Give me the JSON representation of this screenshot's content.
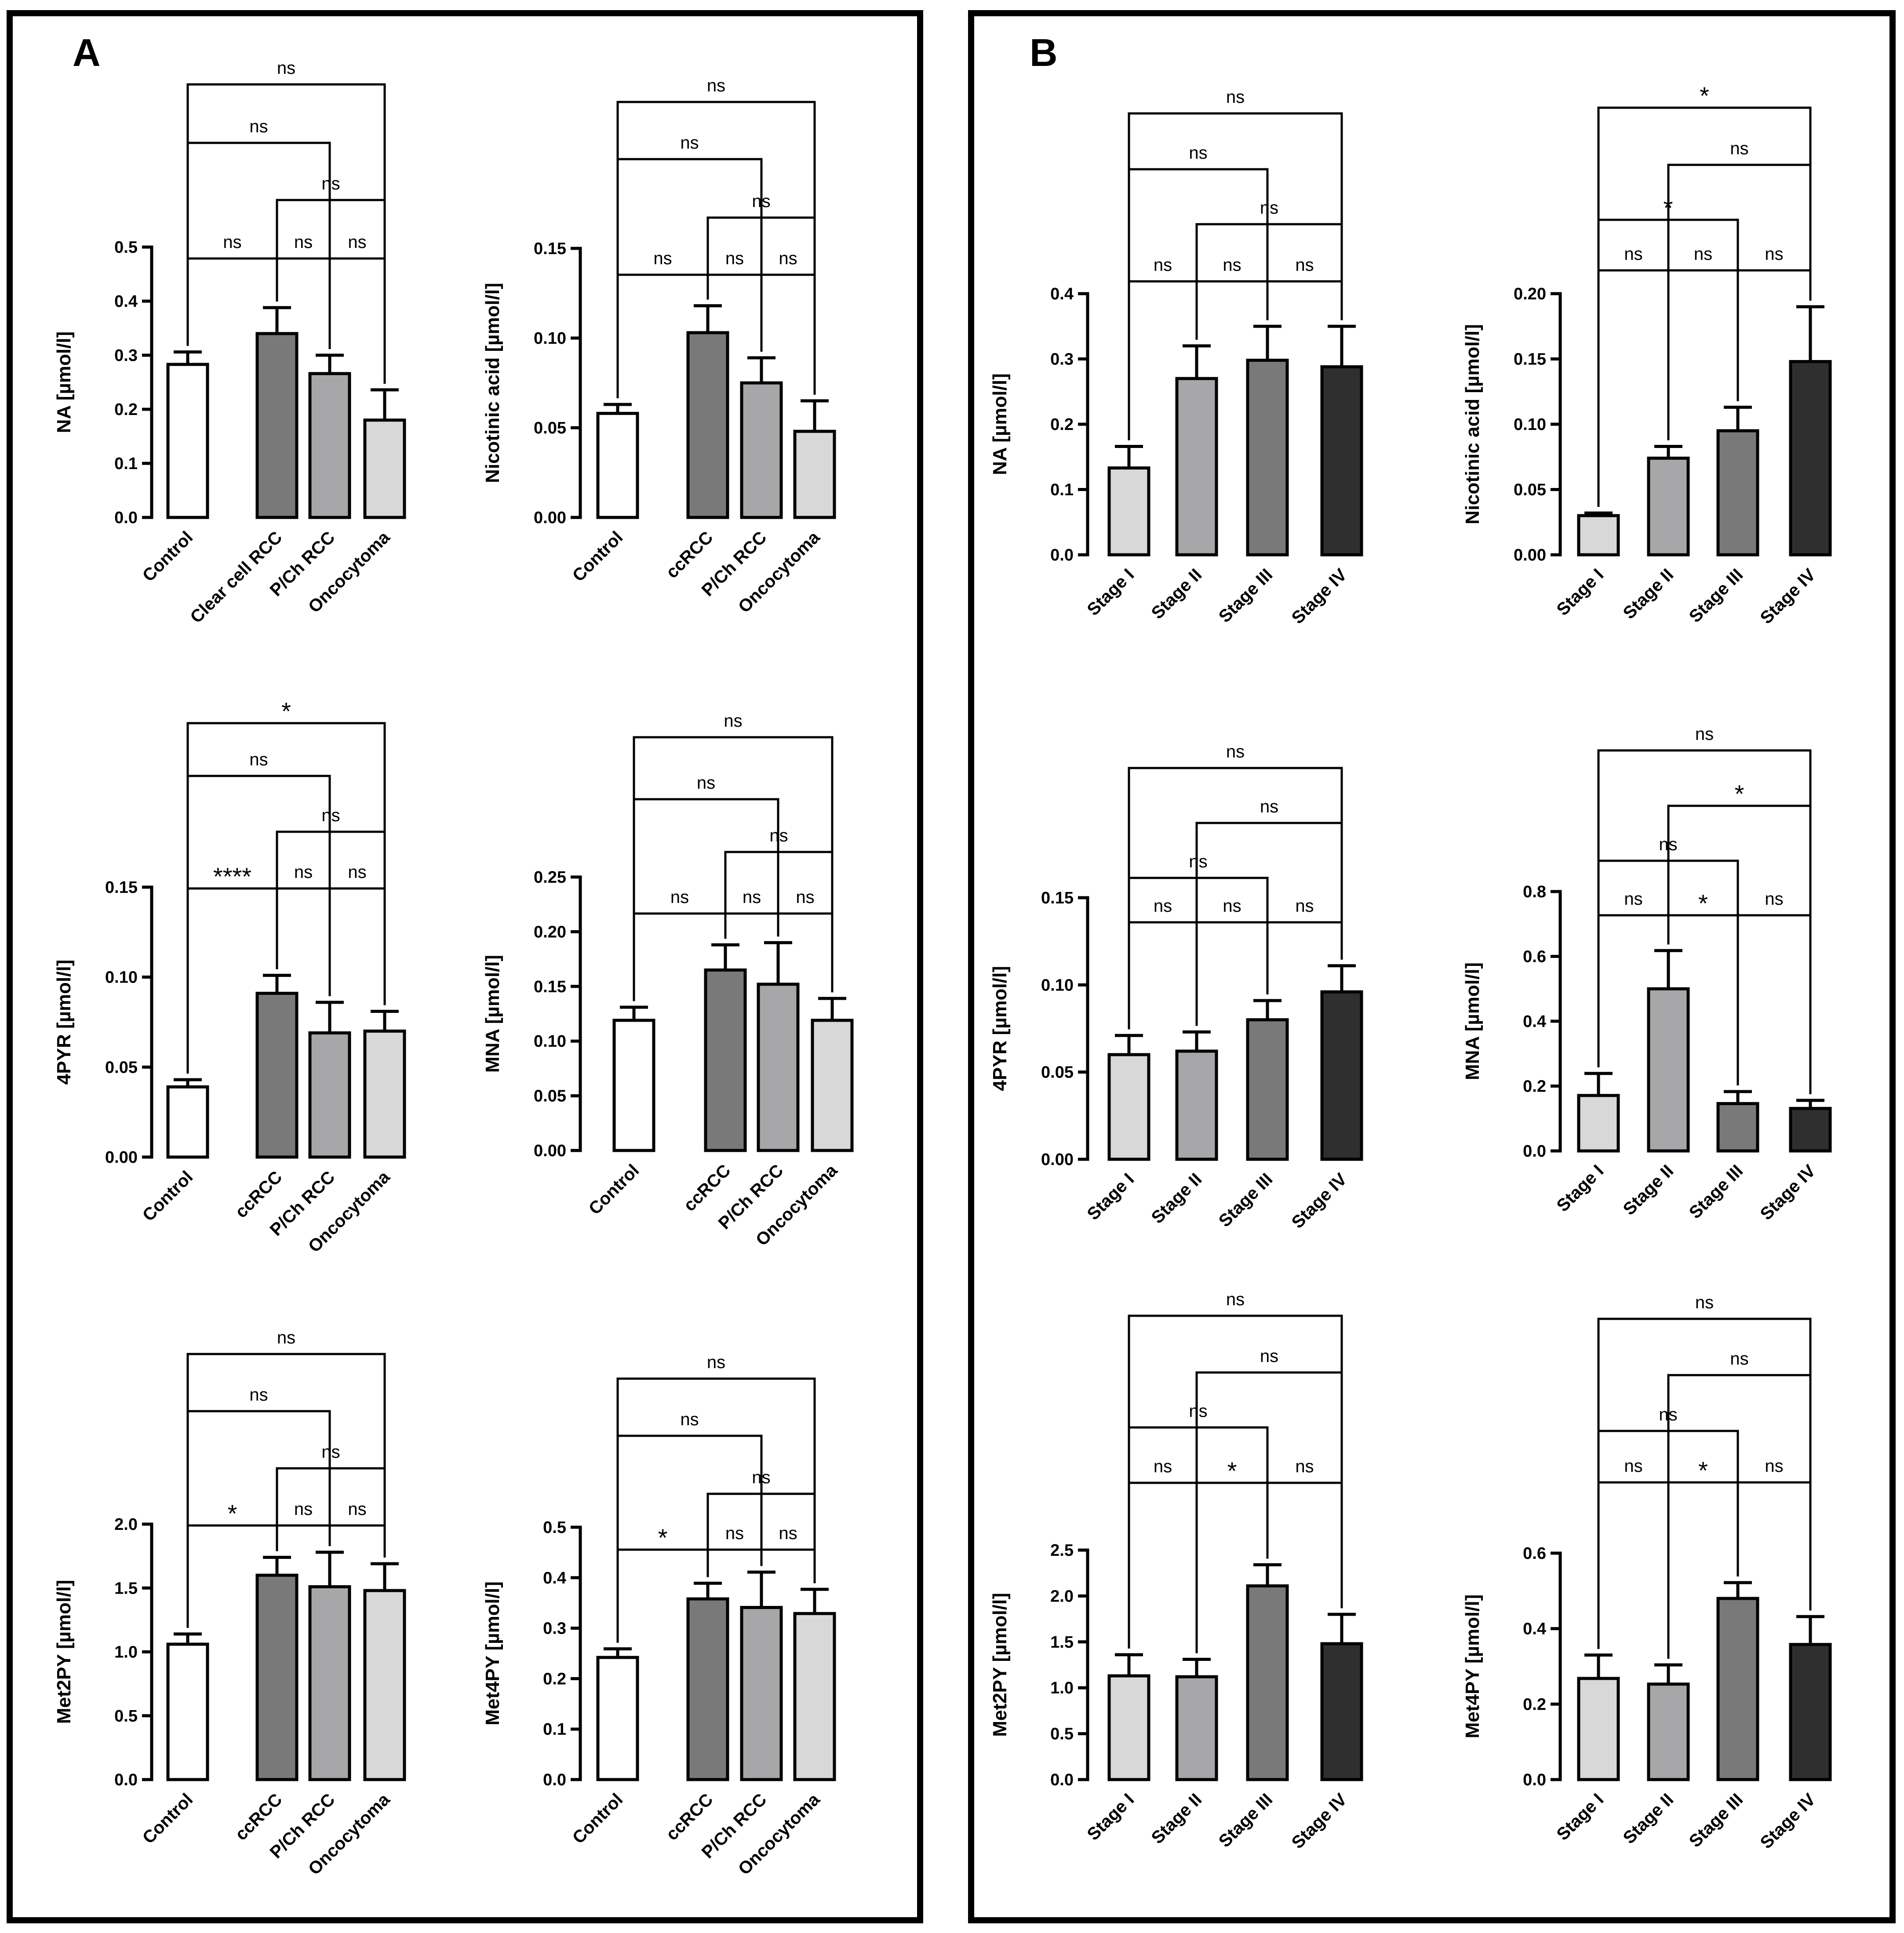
{
  "panels": [
    {
      "label": "A"
    },
    {
      "label": "B"
    }
  ],
  "chart_data": [
    {
      "type": "bar",
      "panel": "A",
      "categories": [
        "Control",
        "Clear cell RCC",
        "P/Ch RCC",
        "Oncocytoma"
      ],
      "values": [
        0.283,
        0.34,
        0.266,
        0.18
      ],
      "errors": [
        0.023,
        0.048,
        0.034,
        0.056
      ],
      "colors": [
        "#ffffff",
        "#797979",
        "#a7a7a9",
        "#d8d8d8"
      ],
      "ylabel": "NA [µmol/l]",
      "ylim": [
        0,
        0.5
      ],
      "yticks": [
        "0.0",
        "0.1",
        "0.2",
        "0.3",
        "0.4",
        "0.5"
      ],
      "comparisons": [
        {
          "a": 0,
          "b": 1,
          "label": "ns"
        },
        {
          "a": 1,
          "b": 2,
          "label": "ns"
        },
        {
          "a": 2,
          "b": 3,
          "label": "ns"
        },
        {
          "a": 1,
          "b": 3,
          "label": "ns"
        },
        {
          "a": 0,
          "b": 2,
          "label": "ns"
        },
        {
          "a": 0,
          "b": 3,
          "label": "ns"
        }
      ]
    },
    {
      "type": "bar",
      "panel": "A",
      "categories": [
        "Control",
        "ccRCC",
        "P/Ch RCC",
        "Oncocytoma"
      ],
      "values": [
        0.058,
        0.103,
        0.075,
        0.048
      ],
      "errors": [
        0.005,
        0.015,
        0.014,
        0.017
      ],
      "colors": [
        "#ffffff",
        "#797979",
        "#a7a7a9",
        "#d8d8d8"
      ],
      "ylabel": "Nicotinic acid [µmol/l]",
      "ylim": [
        0,
        0.15
      ],
      "yticks": [
        "0.00",
        "0.05",
        "0.10",
        "0.15"
      ],
      "comparisons": [
        {
          "a": 0,
          "b": 1,
          "label": "ns"
        },
        {
          "a": 1,
          "b": 2,
          "label": "ns"
        },
        {
          "a": 2,
          "b": 3,
          "label": "ns"
        },
        {
          "a": 1,
          "b": 3,
          "label": "ns"
        },
        {
          "a": 0,
          "b": 2,
          "label": "ns"
        },
        {
          "a": 0,
          "b": 3,
          "label": "ns"
        }
      ]
    },
    {
      "type": "bar",
      "panel": "A",
      "categories": [
        "Control",
        "ccRCC",
        "P/Ch RCC",
        "Oncocytoma"
      ],
      "values": [
        0.039,
        0.091,
        0.069,
        0.07
      ],
      "errors": [
        0.004,
        0.01,
        0.017,
        0.011
      ],
      "colors": [
        "#ffffff",
        "#797979",
        "#a7a7a9",
        "#d8d8d8"
      ],
      "ylabel": "4PYR [µmol/l]",
      "ylim": [
        0,
        0.15
      ],
      "yticks": [
        "0.00",
        "0.05",
        "0.10",
        "0.15"
      ],
      "comparisons": [
        {
          "a": 0,
          "b": 1,
          "label": "****"
        },
        {
          "a": 1,
          "b": 2,
          "label": "ns"
        },
        {
          "a": 2,
          "b": 3,
          "label": "ns"
        },
        {
          "a": 1,
          "b": 3,
          "label": "ns"
        },
        {
          "a": 0,
          "b": 2,
          "label": "ns"
        },
        {
          "a": 0,
          "b": 3,
          "label": "*"
        }
      ]
    },
    {
      "type": "bar",
      "panel": "A",
      "categories": [
        "Control",
        "ccRCC",
        "P/Ch RCC",
        "Oncocytoma"
      ],
      "values": [
        0.119,
        0.165,
        0.152,
        0.119
      ],
      "errors": [
        0.012,
        0.023,
        0.038,
        0.02
      ],
      "colors": [
        "#ffffff",
        "#797979",
        "#a7a7a9",
        "#d8d8d8"
      ],
      "ylabel": "MNA [µmol/l]",
      "ylim": [
        0,
        0.25
      ],
      "yticks": [
        "0.00",
        "0.05",
        "0.10",
        "0.15",
        "0.20",
        "0.25"
      ],
      "comparisons": [
        {
          "a": 0,
          "b": 1,
          "label": "ns"
        },
        {
          "a": 1,
          "b": 2,
          "label": "ns"
        },
        {
          "a": 2,
          "b": 3,
          "label": "ns"
        },
        {
          "a": 1,
          "b": 3,
          "label": "ns"
        },
        {
          "a": 0,
          "b": 2,
          "label": "ns"
        },
        {
          "a": 0,
          "b": 3,
          "label": "ns"
        }
      ]
    },
    {
      "type": "bar",
      "panel": "A",
      "categories": [
        "Control",
        "ccRCC",
        "P/Ch RCC",
        "Oncocytoma"
      ],
      "values": [
        1.06,
        1.6,
        1.51,
        1.48
      ],
      "errors": [
        0.08,
        0.14,
        0.27,
        0.21
      ],
      "colors": [
        "#ffffff",
        "#797979",
        "#a7a7a9",
        "#d8d8d8"
      ],
      "ylabel": "Met2PY [µmol/l]",
      "ylim": [
        0,
        2.0
      ],
      "yticks": [
        "0.0",
        "0.5",
        "1.0",
        "1.5",
        "2.0"
      ],
      "comparisons": [
        {
          "a": 0,
          "b": 1,
          "label": "*"
        },
        {
          "a": 1,
          "b": 2,
          "label": "ns"
        },
        {
          "a": 2,
          "b": 3,
          "label": "ns"
        },
        {
          "a": 1,
          "b": 3,
          "label": "ns"
        },
        {
          "a": 0,
          "b": 2,
          "label": "ns"
        },
        {
          "a": 0,
          "b": 3,
          "label": "ns"
        }
      ]
    },
    {
      "type": "bar",
      "panel": "A",
      "categories": [
        "Control",
        "ccRCC",
        "P/Ch RCC",
        "Oncocytoma"
      ],
      "values": [
        0.242,
        0.358,
        0.341,
        0.329
      ],
      "errors": [
        0.017,
        0.031,
        0.07,
        0.048
      ],
      "colors": [
        "#ffffff",
        "#797979",
        "#a7a7a9",
        "#d8d8d8"
      ],
      "ylabel": "Met4PY [µmol/l]",
      "ylim": [
        0,
        0.5
      ],
      "yticks": [
        "0.0",
        "0.1",
        "0.2",
        "0.3",
        "0.4",
        "0.5"
      ],
      "comparisons": [
        {
          "a": 0,
          "b": 1,
          "label": "*"
        },
        {
          "a": 1,
          "b": 2,
          "label": "ns"
        },
        {
          "a": 2,
          "b": 3,
          "label": "ns"
        },
        {
          "a": 1,
          "b": 3,
          "label": "ns"
        },
        {
          "a": 0,
          "b": 2,
          "label": "ns"
        },
        {
          "a": 0,
          "b": 3,
          "label": "ns"
        }
      ]
    },
    {
      "type": "bar",
      "panel": "B",
      "categories": [
        "Stage I",
        "Stage II",
        "Stage III",
        "Stage IV"
      ],
      "values": [
        0.133,
        0.27,
        0.298,
        0.288
      ],
      "errors": [
        0.033,
        0.05,
        0.052,
        0.062
      ],
      "colors": [
        "#d8d8d8",
        "#a7a7a9",
        "#797979",
        "#2f2f2f"
      ],
      "ylabel": "NA [µmol/l]",
      "ylim": [
        0,
        0.4
      ],
      "yticks": [
        "0.0",
        "0.1",
        "0.2",
        "0.3",
        "0.4"
      ],
      "comparisons": [
        {
          "a": 0,
          "b": 1,
          "label": "ns"
        },
        {
          "a": 1,
          "b": 2,
          "label": "ns"
        },
        {
          "a": 2,
          "b": 3,
          "label": "ns"
        },
        {
          "a": 1,
          "b": 3,
          "label": "ns"
        },
        {
          "a": 0,
          "b": 2,
          "label": "ns"
        },
        {
          "a": 0,
          "b": 3,
          "label": "ns"
        }
      ]
    },
    {
      "type": "bar",
      "panel": "B",
      "categories": [
        "Stage I",
        "Stage II",
        "Stage III",
        "Stage IV"
      ],
      "values": [
        0.03,
        0.074,
        0.095,
        0.148
      ],
      "errors": [
        0.002,
        0.009,
        0.018,
        0.042
      ],
      "colors": [
        "#d8d8d8",
        "#a7a7a9",
        "#797979",
        "#2f2f2f"
      ],
      "ylabel": "Nicotinic acid [µmol/l]",
      "ylim": [
        0,
        0.2
      ],
      "yticks": [
        "0.00",
        "0.05",
        "0.10",
        "0.15",
        "0.20"
      ],
      "comparisons": [
        {
          "a": 0,
          "b": 1,
          "label": "ns"
        },
        {
          "a": 1,
          "b": 2,
          "label": "ns"
        },
        {
          "a": 2,
          "b": 3,
          "label": "ns"
        },
        {
          "a": 0,
          "b": 2,
          "label": "*"
        },
        {
          "a": 1,
          "b": 3,
          "label": "ns"
        },
        {
          "a": 0,
          "b": 3,
          "label": "*"
        }
      ]
    },
    {
      "type": "bar",
      "panel": "B",
      "categories": [
        "Stage I",
        "Stage II",
        "Stage III",
        "Stage IV"
      ],
      "values": [
        0.06,
        0.062,
        0.08,
        0.096
      ],
      "errors": [
        0.011,
        0.011,
        0.011,
        0.015
      ],
      "colors": [
        "#d8d8d8",
        "#a7a7a9",
        "#797979",
        "#2f2f2f"
      ],
      "ylabel": "4PYR [µmol/l]",
      "ylim": [
        0,
        0.15
      ],
      "yticks": [
        "0.00",
        "0.05",
        "0.10",
        "0.15"
      ],
      "comparisons": [
        {
          "a": 0,
          "b": 1,
          "label": "ns"
        },
        {
          "a": 1,
          "b": 2,
          "label": "ns"
        },
        {
          "a": 2,
          "b": 3,
          "label": "ns"
        },
        {
          "a": 0,
          "b": 2,
          "label": "ns"
        },
        {
          "a": 1,
          "b": 3,
          "label": "ns"
        },
        {
          "a": 0,
          "b": 3,
          "label": "ns"
        }
      ]
    },
    {
      "type": "bar",
      "panel": "B",
      "categories": [
        "Stage I",
        "Stage II",
        "Stage III",
        "Stage IV"
      ],
      "values": [
        0.171,
        0.5,
        0.146,
        0.131
      ],
      "errors": [
        0.068,
        0.118,
        0.037,
        0.025
      ],
      "colors": [
        "#d8d8d8",
        "#a7a7a9",
        "#797979",
        "#2f2f2f"
      ],
      "ylabel": "MNA [µmol/l]",
      "ylim": [
        0,
        0.8
      ],
      "yticks": [
        "0.0",
        "0.2",
        "0.4",
        "0.6",
        "0.8"
      ],
      "comparisons": [
        {
          "a": 0,
          "b": 1,
          "label": "ns"
        },
        {
          "a": 1,
          "b": 2,
          "label": "*"
        },
        {
          "a": 2,
          "b": 3,
          "label": "ns"
        },
        {
          "a": 0,
          "b": 2,
          "label": "ns"
        },
        {
          "a": 1,
          "b": 3,
          "label": "*"
        },
        {
          "a": 0,
          "b": 3,
          "label": "ns"
        }
      ]
    },
    {
      "type": "bar",
      "panel": "B",
      "categories": [
        "Stage I",
        "Stage II",
        "Stage III",
        "Stage IV"
      ],
      "values": [
        1.13,
        1.12,
        2.11,
        1.48
      ],
      "errors": [
        0.23,
        0.19,
        0.23,
        0.32
      ],
      "colors": [
        "#d8d8d8",
        "#a7a7a9",
        "#797979",
        "#2f2f2f"
      ],
      "ylabel": "Met2PY [µmol/l]",
      "ylim": [
        0,
        2.5
      ],
      "yticks": [
        "0.0",
        "0.5",
        "1.0",
        "1.5",
        "2.0",
        "2.5"
      ],
      "comparisons": [
        {
          "a": 0,
          "b": 1,
          "label": "ns"
        },
        {
          "a": 1,
          "b": 2,
          "label": "*"
        },
        {
          "a": 2,
          "b": 3,
          "label": "ns"
        },
        {
          "a": 0,
          "b": 2,
          "label": "ns"
        },
        {
          "a": 1,
          "b": 3,
          "label": "ns"
        },
        {
          "a": 0,
          "b": 3,
          "label": "ns"
        }
      ]
    },
    {
      "type": "bar",
      "panel": "B",
      "categories": [
        "Stage I",
        "Stage II",
        "Stage III",
        "Stage IV"
      ],
      "values": [
        0.268,
        0.253,
        0.48,
        0.358
      ],
      "errors": [
        0.062,
        0.051,
        0.042,
        0.074
      ],
      "colors": [
        "#d8d8d8",
        "#a7a7a9",
        "#797979",
        "#2f2f2f"
      ],
      "ylabel": "Met4PY [µmol/l]",
      "ylim": [
        0,
        0.6
      ],
      "yticks": [
        "0.0",
        "0.2",
        "0.4",
        "0.6"
      ],
      "comparisons": [
        {
          "a": 0,
          "b": 1,
          "label": "ns"
        },
        {
          "a": 1,
          "b": 2,
          "label": "*"
        },
        {
          "a": 2,
          "b": 3,
          "label": "ns"
        },
        {
          "a": 0,
          "b": 2,
          "label": "ns"
        },
        {
          "a": 1,
          "b": 3,
          "label": "ns"
        },
        {
          "a": 0,
          "b": 3,
          "label": "ns"
        }
      ]
    }
  ]
}
